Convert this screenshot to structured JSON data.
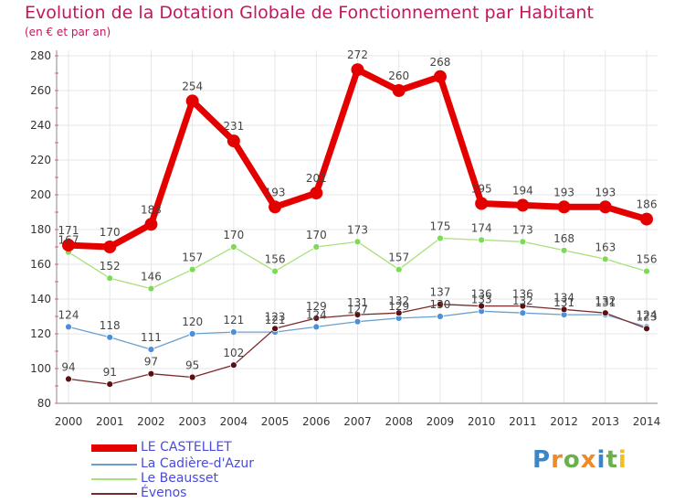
{
  "title": "Evolution de la Dotation Globale de Fonctionnement par Habitant",
  "subtitle": "(en € et par an)",
  "logo": "Proxiti",
  "chart_data": {
    "type": "line",
    "title": "Evolution de la Dotation Globale de Fonctionnement par Habitant",
    "subtitle": "(en € et par an)",
    "categories": [
      "2000",
      "2001",
      "2002",
      "2003",
      "2004",
      "2005",
      "2006",
      "2007",
      "2008",
      "2009",
      "2010",
      "2011",
      "2012",
      "2013",
      "2014"
    ],
    "ylim": [
      80,
      280
    ],
    "yticks": [
      80,
      100,
      120,
      140,
      160,
      180,
      200,
      220,
      240,
      260,
      280
    ],
    "grid": true,
    "legend_position": "bottom-left",
    "series": [
      {
        "name": "LE CASTELLET",
        "color": "#e50000",
        "marker": "#e50000",
        "values": [
          171,
          170,
          183,
          254,
          231,
          193,
          201,
          272,
          260,
          268,
          195,
          194,
          193,
          193,
          186
        ]
      },
      {
        "name": "La Cadière-d'Azur",
        "color": "#6aa0cf",
        "marker": "#4a90d9",
        "values": [
          124,
          118,
          111,
          120,
          121,
          121,
          124,
          127,
          129,
          130,
          133,
          132,
          131,
          131,
          124
        ]
      },
      {
        "name": "Le Beausset",
        "color": "#a8e07a",
        "marker": "#7ed957",
        "values": [
          167,
          152,
          146,
          157,
          170,
          156,
          170,
          173,
          157,
          175,
          174,
          173,
          168,
          163,
          156
        ]
      },
      {
        "name": "Évenos",
        "color": "#7a2a2a",
        "marker": "#5a1010",
        "values": [
          94,
          91,
          97,
          95,
          102,
          123,
          129,
          131,
          132,
          137,
          136,
          136,
          134,
          132,
          123
        ]
      }
    ]
  }
}
